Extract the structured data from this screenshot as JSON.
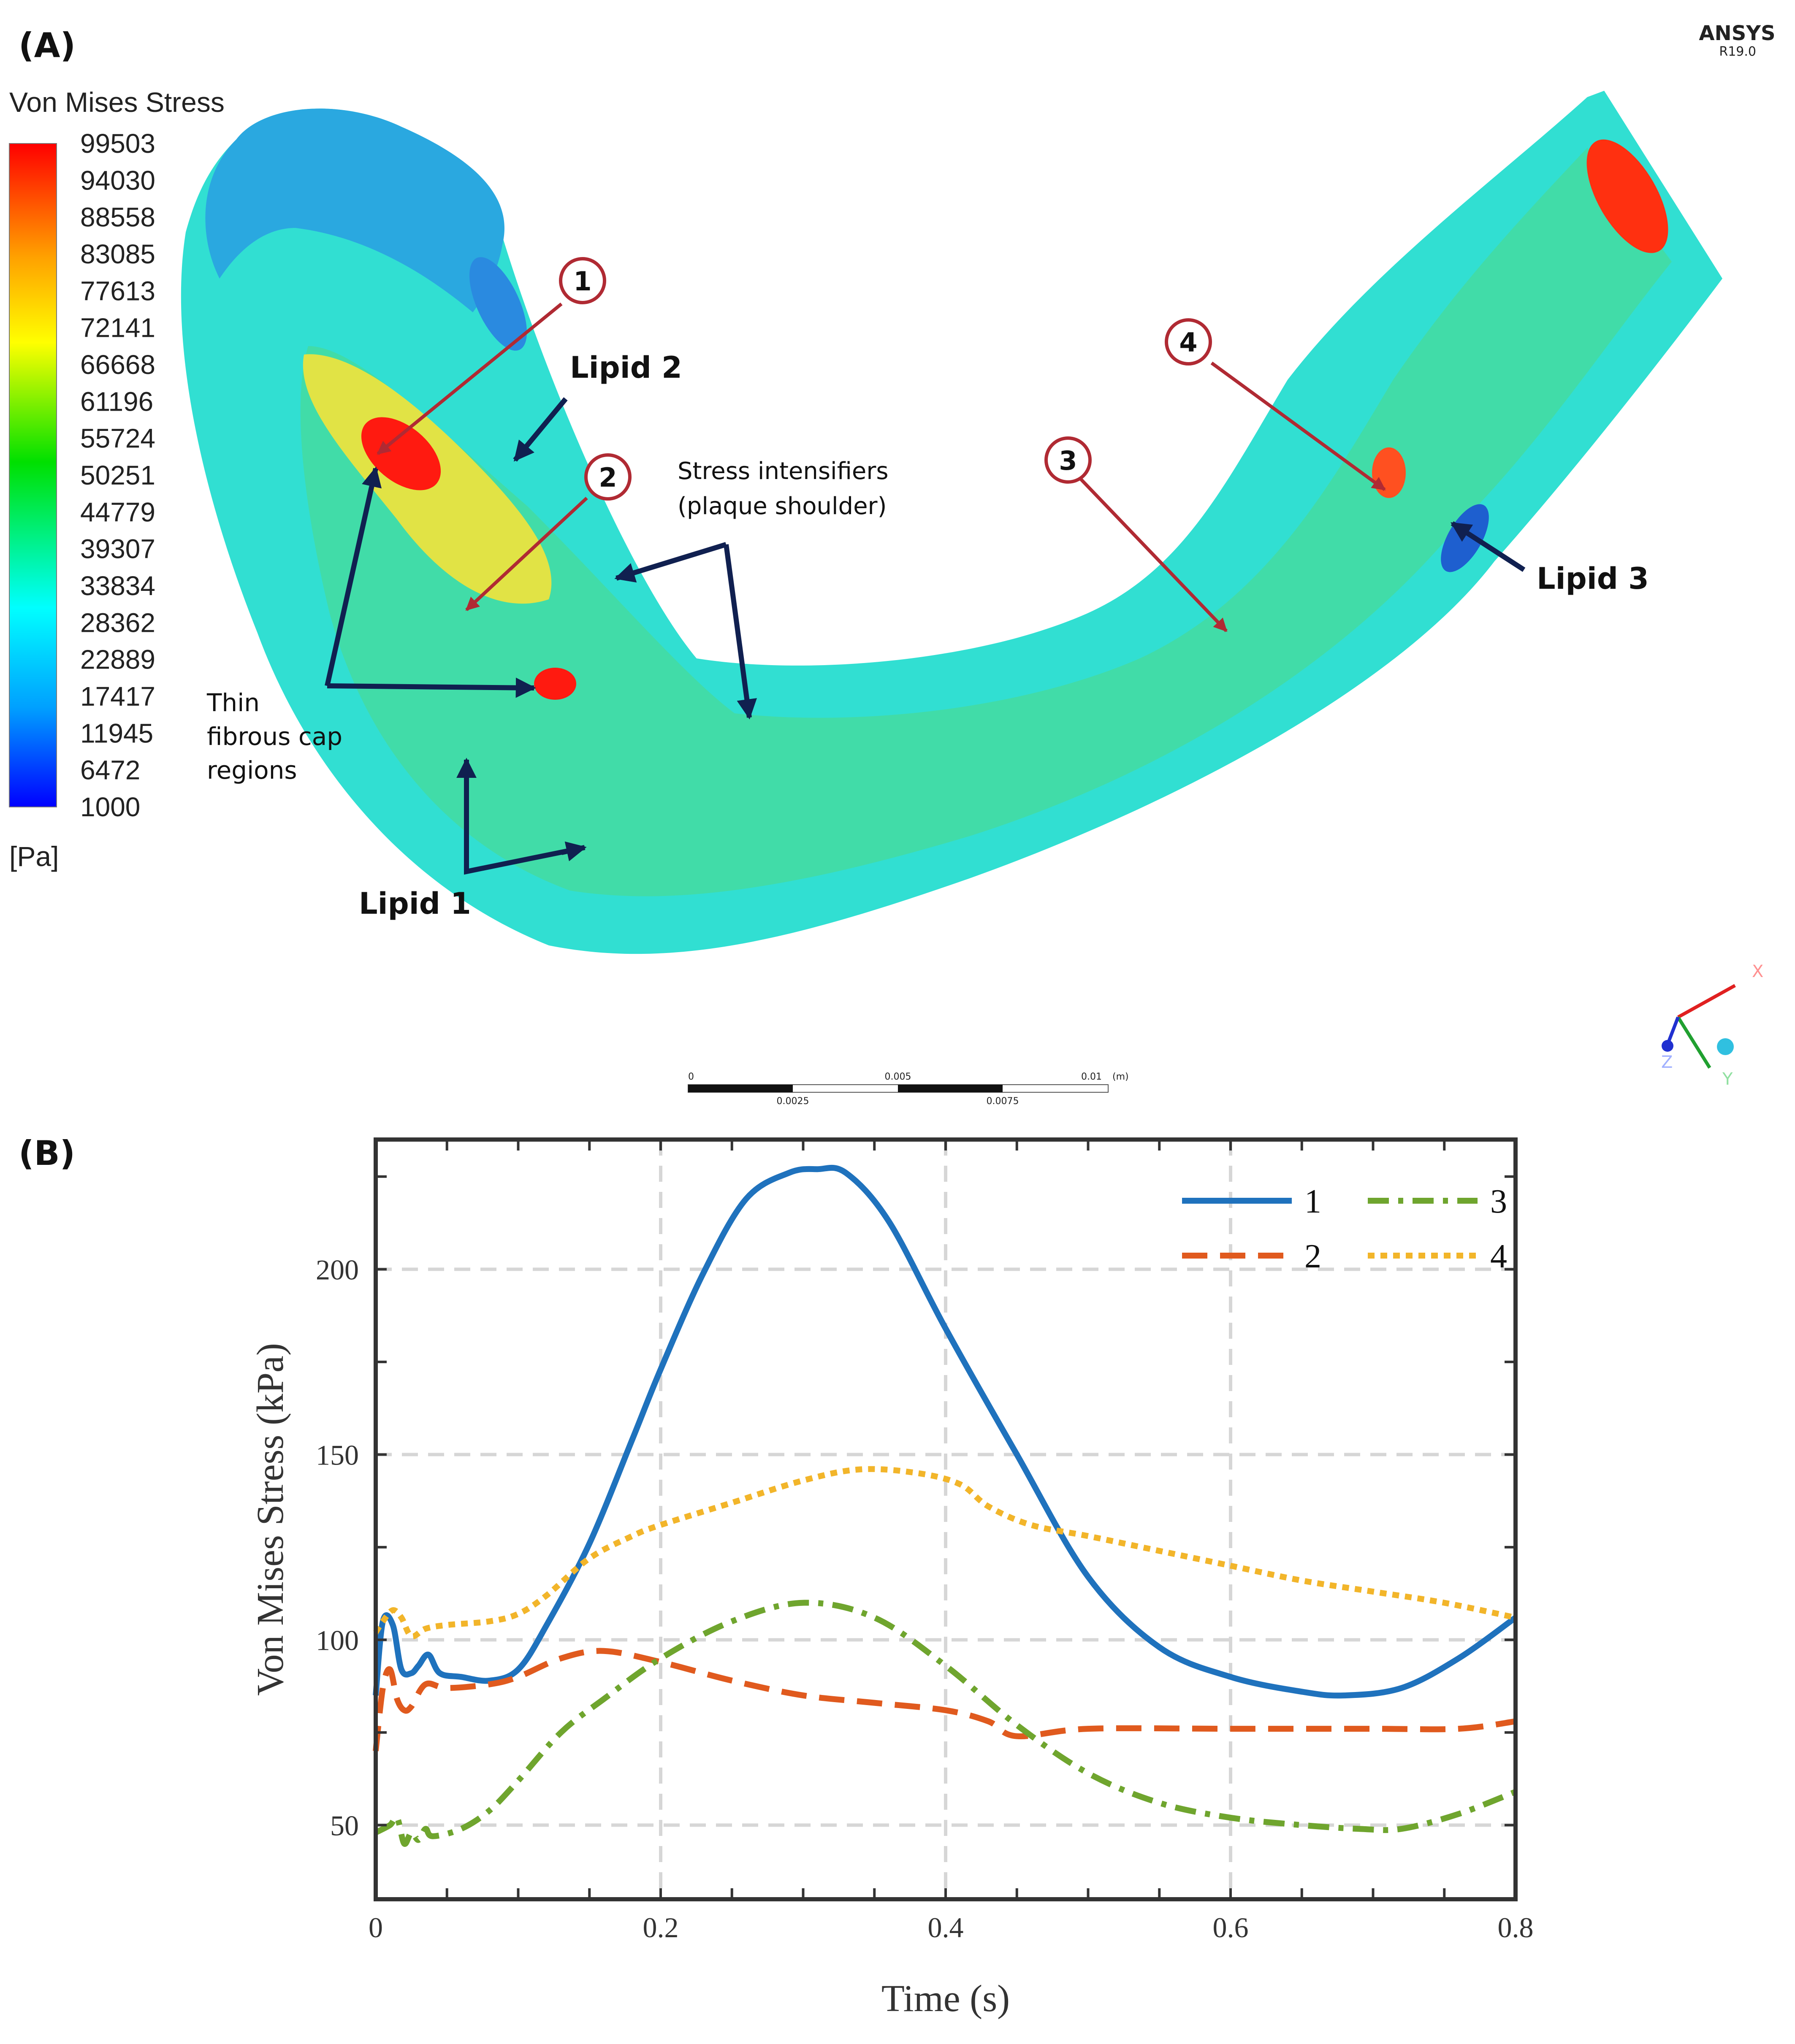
{
  "panel_a": {
    "panel_label": "(A)",
    "software": "ANSYS",
    "version": "R19.0",
    "legend_title": "Von Mises Stress",
    "legend_unit": "[Pa]",
    "legend_ticks": [
      "99503",
      "94030",
      "88558",
      "83085",
      "77613",
      "72141",
      "66668",
      "61196",
      "55724",
      "50251",
      "44779",
      "39307",
      "33834",
      "28362",
      "22889",
      "17417",
      "11945",
      "6472",
      "1000"
    ],
    "colors": {
      "max": "#ff0000",
      "mid": "#00e000",
      "min": "#0000ff",
      "marker": "#b02a33",
      "arrow": "#102050"
    },
    "markers": [
      "1",
      "2",
      "3",
      "4"
    ],
    "annotations": {
      "lipid1": "Lipid 1",
      "lipid2": "Lipid 2",
      "lipid3": "Lipid 3",
      "stress_line1": "Stress intensifiers",
      "stress_line2": "(plaque shoulder)",
      "cap_line1": "Thin",
      "cap_line2": "fibrous cap",
      "cap_line3": "regions"
    },
    "scale_bar": {
      "t0": "0",
      "t1": "0.005",
      "t2": "0.01",
      "unit": "(m)",
      "b1": "0.0025",
      "b2": "0.0075"
    },
    "triad": {
      "x": "X",
      "y": "Y",
      "z": "Z"
    }
  },
  "panel_b": {
    "panel_label": "(B)"
  },
  "chart_data": {
    "type": "line",
    "xlabel": "Time (s)",
    "ylabel": "Von Mises Stress (kPa)",
    "xlim": [
      0,
      0.8
    ],
    "ylim": [
      30,
      235
    ],
    "xticks": [
      "0",
      "0.2",
      "0.4",
      "0.6",
      "0.8"
    ],
    "yticks": [
      "50",
      "100",
      "150",
      "200"
    ],
    "grid": true,
    "legend_position": "top-right",
    "series": [
      {
        "name": "1",
        "color": "#1f72bd",
        "dash": "solid",
        "x": [
          0,
          0.005,
          0.012,
          0.018,
          0.025,
          0.03,
          0.037,
          0.045,
          0.06,
          0.08,
          0.1,
          0.12,
          0.15,
          0.18,
          0.2,
          0.23,
          0.26,
          0.29,
          0.31,
          0.33,
          0.36,
          0.4,
          0.45,
          0.5,
          0.55,
          0.6,
          0.65,
          0.68,
          0.72,
          0.76,
          0.8
        ],
        "y": [
          85,
          105,
          104,
          92,
          91,
          93,
          96,
          91,
          90,
          89,
          92,
          104,
          126,
          154,
          173,
          199,
          219,
          226,
          227,
          226,
          213,
          184,
          150,
          117,
          98,
          90,
          86,
          85,
          87,
          95,
          106
        ]
      },
      {
        "name": "2",
        "color": "#e05a1e",
        "dash": "dashed",
        "x": [
          0,
          0.005,
          0.01,
          0.015,
          0.02,
          0.025,
          0.035,
          0.05,
          0.08,
          0.1,
          0.13,
          0.16,
          0.2,
          0.25,
          0.3,
          0.35,
          0.4,
          0.43,
          0.45,
          0.5,
          0.6,
          0.7,
          0.76,
          0.8
        ],
        "y": [
          70,
          87,
          92,
          84,
          81,
          82,
          88,
          87,
          88,
          90,
          95,
          97,
          94,
          89,
          85,
          83,
          81,
          78,
          74,
          76,
          76,
          76,
          76,
          78
        ]
      },
      {
        "name": "3",
        "color": "#6fa52e",
        "dash": "dashdot",
        "x": [
          0,
          0.01,
          0.015,
          0.02,
          0.025,
          0.03,
          0.035,
          0.04,
          0.06,
          0.08,
          0.1,
          0.13,
          0.16,
          0.2,
          0.25,
          0.3,
          0.35,
          0.4,
          0.45,
          0.5,
          0.55,
          0.6,
          0.65,
          0.69,
          0.72,
          0.76,
          0.8
        ],
        "y": [
          48,
          50,
          52,
          45,
          48,
          46,
          49,
          47,
          49,
          54,
          62,
          75,
          84,
          95,
          105,
          110,
          106,
          93,
          77,
          64,
          56,
          52,
          50,
          49,
          49,
          53,
          59
        ]
      },
      {
        "name": "4",
        "color": "#f2b52a",
        "dash": "dotted",
        "x": [
          0,
          0.005,
          0.012,
          0.018,
          0.025,
          0.035,
          0.05,
          0.08,
          0.1,
          0.12,
          0.15,
          0.18,
          0.2,
          0.25,
          0.3,
          0.34,
          0.38,
          0.41,
          0.43,
          0.46,
          0.5,
          0.55,
          0.6,
          0.65,
          0.7,
          0.75,
          0.8
        ],
        "y": [
          102,
          105,
          108,
          106,
          101,
          103,
          104,
          105,
          107,
          112,
          122,
          128,
          131,
          137,
          143,
          146,
          145,
          142,
          136,
          131,
          128,
          124,
          120,
          116,
          113,
          110,
          106
        ]
      }
    ]
  }
}
